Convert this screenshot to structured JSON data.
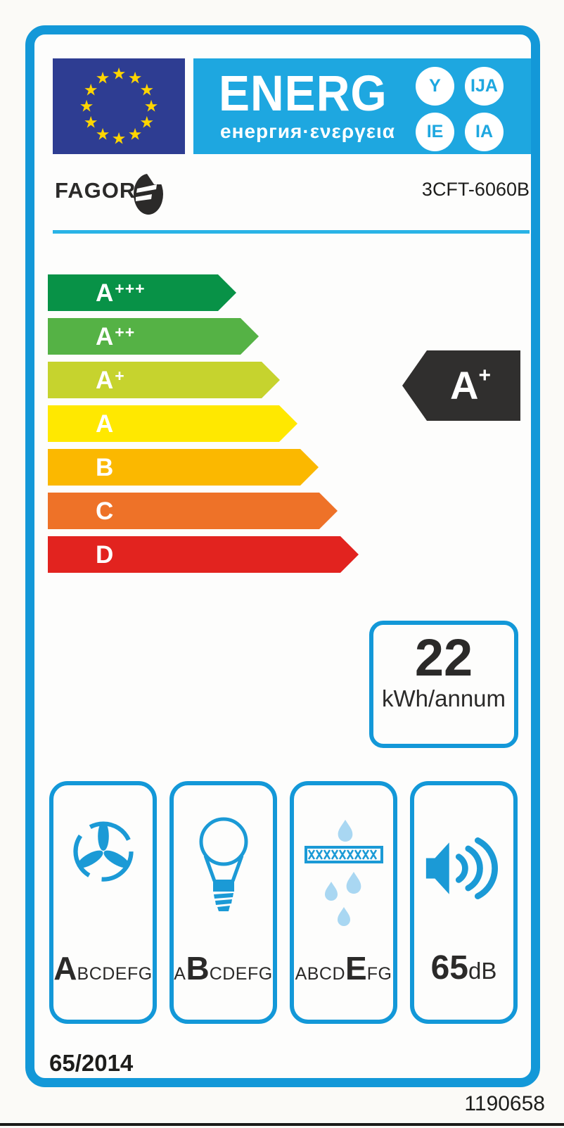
{
  "header": {
    "eu_flag_label": "EU flag",
    "logo_text": "ENERG",
    "logo_subtext": "енергия·ενεργεια",
    "logo_endings": [
      "Y",
      "IJA",
      "IE",
      "IA"
    ]
  },
  "brand": {
    "name": "FAGOR",
    "model": "3CFT-6060B"
  },
  "rating_scale": [
    {
      "base": "A",
      "sup": "+++",
      "color": "#089247"
    },
    {
      "base": "A",
      "sup": "++",
      "color": "#55b245"
    },
    {
      "base": "A",
      "sup": "+",
      "color": "#c6d32e"
    },
    {
      "base": "A",
      "sup": "",
      "color": "#ffe800"
    },
    {
      "base": "B",
      "sup": "",
      "color": "#fbb800"
    },
    {
      "base": "C",
      "sup": "",
      "color": "#ee7228"
    },
    {
      "base": "D",
      "sup": "",
      "color": "#e2231f"
    }
  ],
  "rating": {
    "base": "A",
    "sup": "+",
    "arrow_color": "#302f2e"
  },
  "annual_energy": {
    "value": "22",
    "unit": "kWh/annum"
  },
  "metrics": {
    "fan_efficiency": {
      "icon": "fan-icon",
      "prefix": "",
      "grade": "A",
      "suffix": "BCDEFG"
    },
    "lighting_efficiency": {
      "icon": "bulb-icon",
      "prefix": "A",
      "grade": "B",
      "suffix": "CDEFG"
    },
    "grease_filtering": {
      "icon": "grease-filter-icon",
      "prefix": "ABCD",
      "grade": "E",
      "suffix": "FG"
    },
    "noise": {
      "icon": "speaker-icon",
      "value": "65",
      "unit": "dB"
    }
  },
  "footer": {
    "regulation": "65/2014",
    "document_number": "1190658"
  },
  "colors": {
    "frame_blue": "#1398d8",
    "banner_blue": "#1ea7e0",
    "eu_flag_blue": "#2e3d92",
    "star_yellow": "#ffd500",
    "icon_blue": "#1b9ad6",
    "drop_light_blue": "#a9d7f2",
    "rating_arrow_black": "#302f2e"
  }
}
